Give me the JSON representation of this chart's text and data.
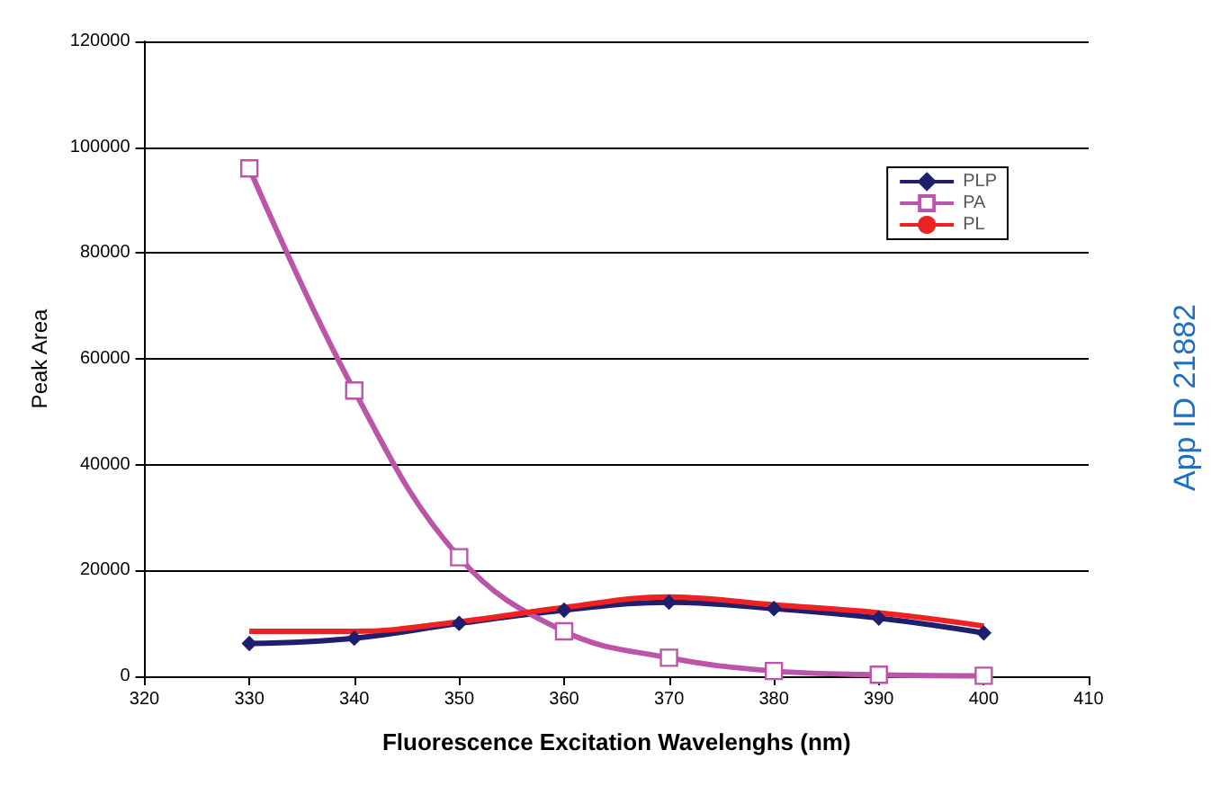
{
  "chart_data": {
    "type": "line",
    "xlabel": "Fluorescence Excitation Wavelenghs (nm)",
    "ylabel": "Peak Area",
    "x": [
      330,
      340,
      350,
      360,
      370,
      380,
      390,
      400
    ],
    "series": [
      {
        "name": "PLP",
        "color": "#1f1f6e",
        "marker": "diamond",
        "values": [
          6200,
          7200,
          10000,
          12500,
          14000,
          12800,
          11000,
          8200
        ]
      },
      {
        "name": "PA",
        "color": "#bb55aa",
        "marker": "square",
        "values": [
          96000,
          54000,
          22500,
          8500,
          3500,
          1000,
          300,
          100
        ]
      },
      {
        "name": "PL",
        "color": "#ee2222",
        "marker": "none",
        "values": [
          8500,
          8500,
          10300,
          13000,
          15000,
          13500,
          12000,
          9500
        ]
      }
    ],
    "xlim": [
      320,
      410
    ],
    "xticks": [
      320,
      330,
      340,
      350,
      360,
      370,
      380,
      390,
      400,
      410
    ],
    "ylim": [
      0,
      120000
    ],
    "yticks": [
      0,
      20000,
      40000,
      60000,
      80000,
      100000,
      120000
    ],
    "grid": "y",
    "legend": "top right",
    "annotations": [
      "App ID 21882"
    ]
  }
}
